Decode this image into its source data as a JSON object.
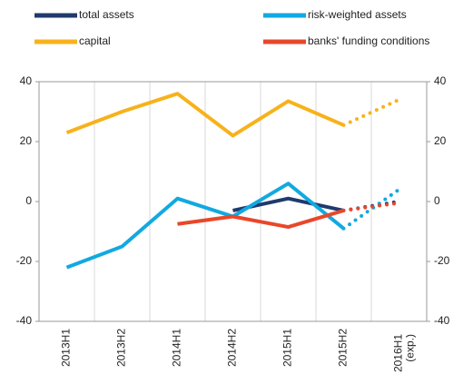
{
  "chart_data": {
    "type": "line",
    "categories": [
      "2013H1",
      "2013H2",
      "2014H1",
      "2014H2",
      "2015H1",
      "2015H2",
      "2016H1 (exp.)"
    ],
    "series": [
      {
        "name": "total assets",
        "color": "#1f3a6e",
        "values": [
          null,
          null,
          null,
          -3,
          1,
          -3,
          0
        ]
      },
      {
        "name": "risk-weighted assets",
        "color": "#12a9e0",
        "values": [
          -22,
          -15,
          1,
          -5,
          6,
          -9,
          4
        ]
      },
      {
        "name": "capital",
        "color": "#f7b21b",
        "values": [
          23,
          30,
          36,
          22,
          33.5,
          25.5,
          34
        ]
      },
      {
        "name": "banks' funding conditions",
        "color": "#e8472a",
        "values": [
          null,
          null,
          -7.5,
          -5,
          -8.5,
          -3,
          -0.5
        ]
      }
    ],
    "dotted_from_index": 5,
    "ylim": [
      -40,
      40
    ],
    "yticks": [
      -40,
      -20,
      0,
      20,
      40
    ],
    "y2lim": [
      -40,
      40
    ],
    "y2ticks": [
      -40,
      -20,
      0,
      20,
      40
    ]
  }
}
